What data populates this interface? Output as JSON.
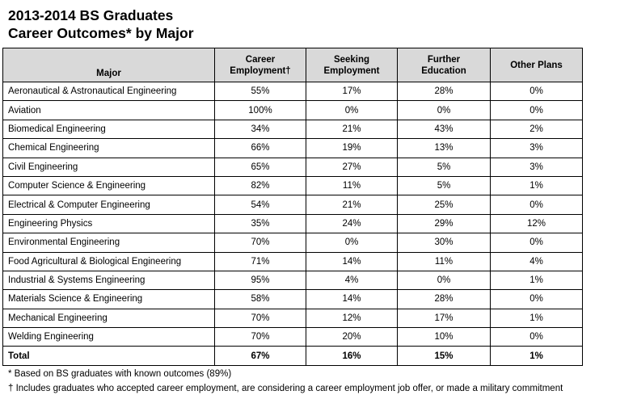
{
  "title": {
    "line1": "2013-2014 BS Graduates",
    "line2": "Career Outcomes* by Major"
  },
  "table": {
    "headers": {
      "major": "Major",
      "career_line1": "Career",
      "career_line2": "Employment†",
      "seeking_line1": "Seeking",
      "seeking_line2": "Employment",
      "further_line1": "Further",
      "further_line2": "Education",
      "other": "Other Plans"
    },
    "rows": [
      {
        "major": "Aeronautical & Astronautical Engineering",
        "career": "55%",
        "seeking": "17%",
        "further": "28%",
        "other": "0%"
      },
      {
        "major": "Aviation",
        "career": "100%",
        "seeking": "0%",
        "further": "0%",
        "other": "0%"
      },
      {
        "major": "Biomedical Engineering",
        "career": "34%",
        "seeking": "21%",
        "further": "43%",
        "other": "2%"
      },
      {
        "major": "Chemical Engineering",
        "career": "66%",
        "seeking": "19%",
        "further": "13%",
        "other": "3%"
      },
      {
        "major": "Civil Engineering",
        "career": "65%",
        "seeking": "27%",
        "further": "5%",
        "other": "3%"
      },
      {
        "major": "Computer Science & Engineering",
        "career": "82%",
        "seeking": "11%",
        "further": "5%",
        "other": "1%"
      },
      {
        "major": "Electrical & Computer Engineering",
        "career": "54%",
        "seeking": "21%",
        "further": "25%",
        "other": "0%"
      },
      {
        "major": "Engineering Physics",
        "career": "35%",
        "seeking": "24%",
        "further": "29%",
        "other": "12%"
      },
      {
        "major": "Environmental Engineering",
        "career": "70%",
        "seeking": "0%",
        "further": "30%",
        "other": "0%"
      },
      {
        "major": "Food Agricultural & Biological Engineering",
        "career": "71%",
        "seeking": "14%",
        "further": "11%",
        "other": "4%"
      },
      {
        "major": "Industrial & Systems Engineering",
        "career": "95%",
        "seeking": "4%",
        "further": "0%",
        "other": "1%"
      },
      {
        "major": "Materials Science & Engineering",
        "career": "58%",
        "seeking": "14%",
        "further": "28%",
        "other": "0%"
      },
      {
        "major": "Mechanical Engineering",
        "career": "70%",
        "seeking": "12%",
        "further": "17%",
        "other": "1%"
      },
      {
        "major": "Welding Engineering",
        "career": "70%",
        "seeking": "20%",
        "further": "10%",
        "other": "0%"
      }
    ],
    "total": {
      "major": "Total",
      "career": "67%",
      "seeking": "16%",
      "further": "15%",
      "other": "1%"
    }
  },
  "footnotes": {
    "asterisk": "* Based on BS graduates with known outcomes (89%)",
    "dagger": "† Includes graduates who accepted career employment, are considering a career employment job offer, or made a military commitment"
  },
  "colors": {
    "header_background": "#d9d9d9",
    "border": "#000000"
  }
}
